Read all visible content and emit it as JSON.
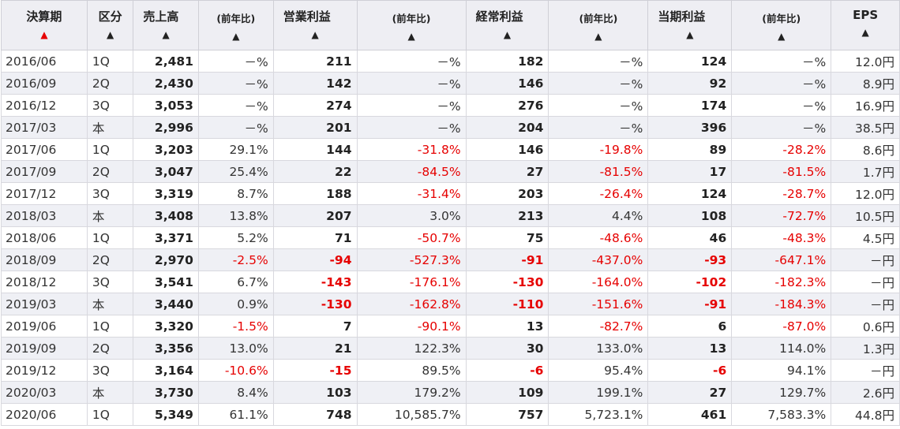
{
  "headers": [
    {
      "label": "決算期",
      "arrow": "▲",
      "active": true
    },
    {
      "label": "区分",
      "arrow": "▲"
    },
    {
      "label": "売上高",
      "arrow": "▲"
    },
    {
      "label": "(前年比)",
      "arrow": "▲",
      "small": true
    },
    {
      "label": "営業利益",
      "arrow": "▲"
    },
    {
      "label": "(前年比)",
      "arrow": "▲",
      "small": true
    },
    {
      "label": "経常利益",
      "arrow": "▲"
    },
    {
      "label": "(前年比)",
      "arrow": "▲",
      "small": true
    },
    {
      "label": "当期利益",
      "arrow": "▲"
    },
    {
      "label": "(前年比)",
      "arrow": "▲",
      "small": true
    },
    {
      "label": "EPS",
      "arrow": "▲"
    }
  ],
  "colors": {
    "negative": "#e60000",
    "sort_active": "#e60000",
    "header_bg": "#eeeef3",
    "stripe_bg": "#eff0f5"
  },
  "rows": [
    [
      "2016/06",
      "1Q",
      "2,481",
      "－%",
      "211",
      "－%",
      "182",
      "－%",
      "124",
      "－%",
      "12.0円"
    ],
    [
      "2016/09",
      "2Q",
      "2,430",
      "－%",
      "142",
      "－%",
      "146",
      "－%",
      "92",
      "－%",
      "8.9円"
    ],
    [
      "2016/12",
      "3Q",
      "3,053",
      "－%",
      "274",
      "－%",
      "276",
      "－%",
      "174",
      "－%",
      "16.9円"
    ],
    [
      "2017/03",
      "本",
      "2,996",
      "－%",
      "201",
      "－%",
      "204",
      "－%",
      "396",
      "－%",
      "38.5円"
    ],
    [
      "2017/06",
      "1Q",
      "3,203",
      "29.1%",
      "144",
      "-31.8%",
      "146",
      "-19.8%",
      "89",
      "-28.2%",
      "8.6円"
    ],
    [
      "2017/09",
      "2Q",
      "3,047",
      "25.4%",
      "22",
      "-84.5%",
      "27",
      "-81.5%",
      "17",
      "-81.5%",
      "1.7円"
    ],
    [
      "2017/12",
      "3Q",
      "3,319",
      "8.7%",
      "188",
      "-31.4%",
      "203",
      "-26.4%",
      "124",
      "-28.7%",
      "12.0円"
    ],
    [
      "2018/03",
      "本",
      "3,408",
      "13.8%",
      "207",
      "3.0%",
      "213",
      "4.4%",
      "108",
      "-72.7%",
      "10.5円"
    ],
    [
      "2018/06",
      "1Q",
      "3,371",
      "5.2%",
      "71",
      "-50.7%",
      "75",
      "-48.6%",
      "46",
      "-48.3%",
      "4.5円"
    ],
    [
      "2018/09",
      "2Q",
      "2,970",
      "-2.5%",
      "-94",
      "-527.3%",
      "-91",
      "-437.0%",
      "-93",
      "-647.1%",
      "－円"
    ],
    [
      "2018/12",
      "3Q",
      "3,541",
      "6.7%",
      "-143",
      "-176.1%",
      "-130",
      "-164.0%",
      "-102",
      "-182.3%",
      "－円"
    ],
    [
      "2019/03",
      "本",
      "3,440",
      "0.9%",
      "-130",
      "-162.8%",
      "-110",
      "-151.6%",
      "-91",
      "-184.3%",
      "－円"
    ],
    [
      "2019/06",
      "1Q",
      "3,320",
      "-1.5%",
      "7",
      "-90.1%",
      "13",
      "-82.7%",
      "6",
      "-87.0%",
      "0.6円"
    ],
    [
      "2019/09",
      "2Q",
      "3,356",
      "13.0%",
      "21",
      "122.3%",
      "30",
      "133.0%",
      "13",
      "114.0%",
      "1.3円"
    ],
    [
      "2019/12",
      "3Q",
      "3,164",
      "-10.6%",
      "-15",
      "89.5%",
      "-6",
      "95.4%",
      "-6",
      "94.1%",
      "－円"
    ],
    [
      "2020/03",
      "本",
      "3,730",
      "8.4%",
      "103",
      "179.2%",
      "109",
      "199.1%",
      "27",
      "129.7%",
      "2.6円"
    ],
    [
      "2020/06",
      "1Q",
      "5,349",
      "61.1%",
      "748",
      "10,585.7%",
      "757",
      "5,723.1%",
      "461",
      "7,583.3%",
      "44.8円"
    ]
  ]
}
